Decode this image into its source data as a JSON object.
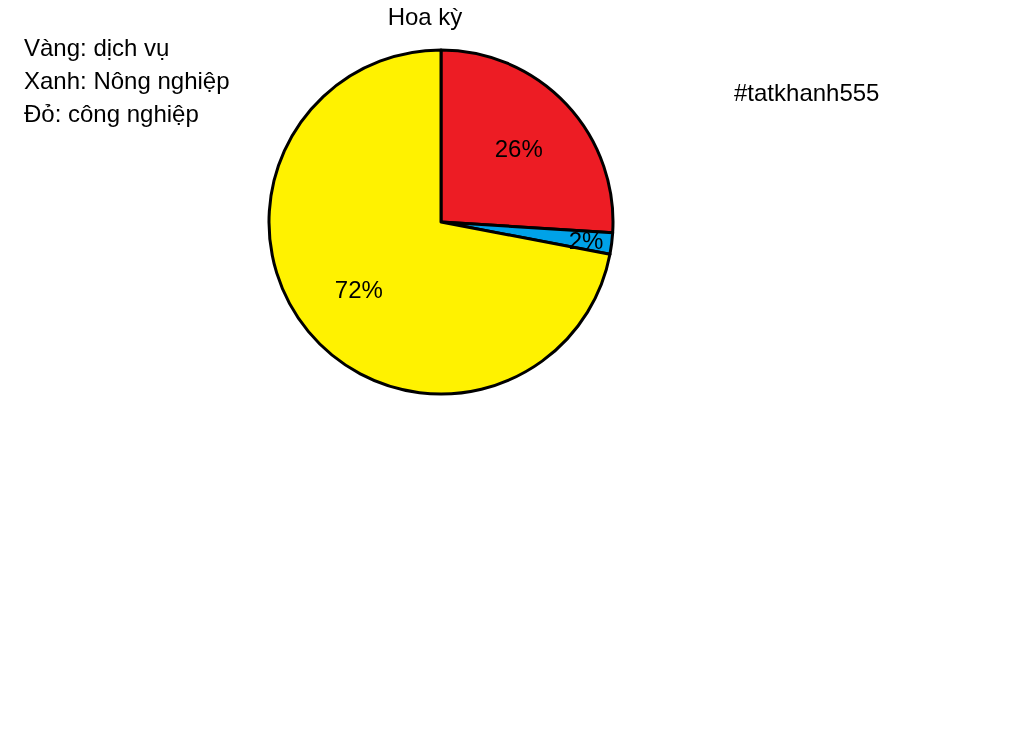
{
  "chart_data": {
    "type": "pie",
    "title": "Hoa kỳ",
    "categories": [
      null,
      null,
      null
    ],
    "values": [
      26,
      2,
      72
    ],
    "colors": [
      "#ed1c24",
      "#00a2e8",
      "#fff200"
    ],
    "value_labels": [
      "26%",
      "2%",
      "72%"
    ],
    "annotations": [
      "Vàng: dịch vụ",
      "Xanh: Nông nghiệp",
      "Đỏ: công nghiệp",
      "#tatkhanh555"
    ]
  }
}
